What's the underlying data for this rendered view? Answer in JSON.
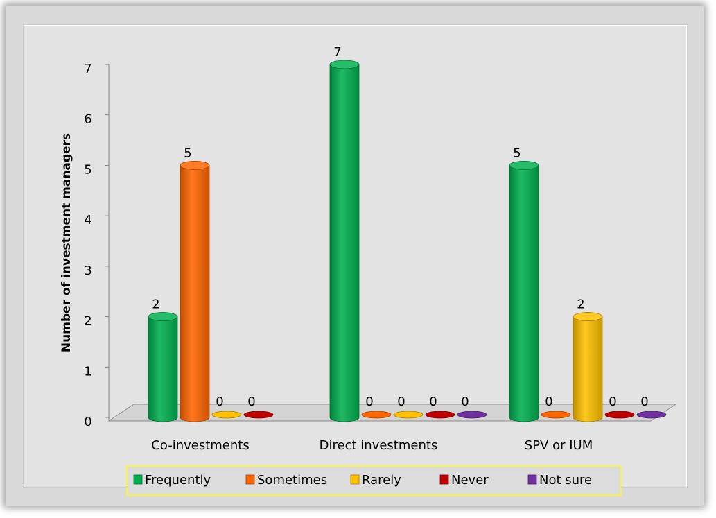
{
  "chart_data": {
    "type": "bar",
    "title": "",
    "xlabel": "",
    "ylabel": "Number of investment managers",
    "ylim": [
      0,
      7
    ],
    "y_ticks": [
      0,
      1,
      2,
      3,
      4,
      5,
      6,
      7
    ],
    "categories": [
      "Co-investments",
      "Direct investments",
      "SPV or IUM"
    ],
    "series": [
      {
        "name": "Frequently",
        "color": "#00b050",
        "values": [
          2,
          7,
          5
        ]
      },
      {
        "name": "Sometimes",
        "color": "#ff6600",
        "values": [
          5,
          0,
          0
        ]
      },
      {
        "name": "Rarely",
        "color": "#ffc000",
        "values": [
          0,
          0,
          2
        ]
      },
      {
        "name": "Never",
        "color": "#c00000",
        "values": [
          0,
          0,
          0
        ]
      },
      {
        "name": "Not sure",
        "color": "#7030a0",
        "values": [
          null,
          0,
          0
        ]
      }
    ],
    "legend": {
      "position": "bottom",
      "border_color": "#ffff00"
    },
    "grid": false,
    "style": "3d-cylinder"
  }
}
